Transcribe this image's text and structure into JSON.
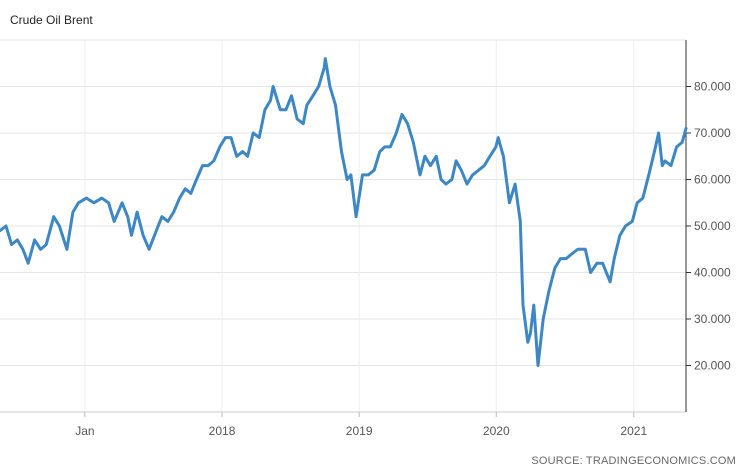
{
  "chart_data": {
    "type": "line",
    "title": "Crude Oil Brent",
    "xlabel": "",
    "ylabel": "",
    "source": "SOURCE: TRADINGECONOMICS.COM",
    "ylim": [
      10,
      90
    ],
    "y_ticks": [
      20,
      30,
      40,
      50,
      60,
      70,
      80
    ],
    "y_tick_labels": [
      "20.000",
      "30.000",
      "40.000",
      "50.000",
      "60.000",
      "70.000",
      "80.000"
    ],
    "y_axis_position": "right",
    "grid": true,
    "x_range": [
      "2016-05-20",
      "2021-05-20"
    ],
    "x_ticks": [
      "2017-01-01",
      "2018-01-01",
      "2019-01-01",
      "2020-01-01",
      "2021-01-01"
    ],
    "x_tick_labels": [
      "Jan",
      "2018",
      "2019",
      "2020",
      "2021"
    ],
    "line_color": "#3d87c4",
    "series": [
      {
        "x": [
          "2016-05-20",
          "2016-06-05",
          "2016-06-20",
          "2016-07-05",
          "2016-07-20",
          "2016-08-03",
          "2016-08-20",
          "2016-09-05",
          "2016-09-20",
          "2016-10-10",
          "2016-10-25",
          "2016-11-14",
          "2016-11-30",
          "2016-12-15",
          "2017-01-05",
          "2017-01-25",
          "2017-02-15",
          "2017-03-05",
          "2017-03-20",
          "2017-04-10",
          "2017-04-25",
          "2017-05-05",
          "2017-05-20",
          "2017-06-05",
          "2017-06-21",
          "2017-07-10",
          "2017-07-25",
          "2017-08-10",
          "2017-08-25",
          "2017-09-10",
          "2017-09-25",
          "2017-10-10",
          "2017-10-25",
          "2017-11-10",
          "2017-11-25",
          "2017-12-10",
          "2017-12-26",
          "2018-01-10",
          "2018-01-25",
          "2018-02-09",
          "2018-02-25",
          "2018-03-10",
          "2018-03-25",
          "2018-04-10",
          "2018-04-25",
          "2018-05-10",
          "2018-05-17",
          "2018-06-05",
          "2018-06-20",
          "2018-07-05",
          "2018-07-20",
          "2018-08-05",
          "2018-08-15",
          "2018-08-31",
          "2018-09-15",
          "2018-09-30",
          "2018-10-03",
          "2018-10-15",
          "2018-10-30",
          "2018-11-15",
          "2018-11-30",
          "2018-12-10",
          "2018-12-24",
          "2019-01-10",
          "2019-01-25",
          "2019-02-10",
          "2019-02-25",
          "2019-03-10",
          "2019-03-25",
          "2019-04-10",
          "2019-04-25",
          "2019-05-10",
          "2019-05-25",
          "2019-06-12",
          "2019-06-25",
          "2019-07-10",
          "2019-07-25",
          "2019-08-07",
          "2019-08-20",
          "2019-09-05",
          "2019-09-16",
          "2019-09-30",
          "2019-10-15",
          "2019-10-30",
          "2019-11-15",
          "2019-11-30",
          "2019-12-15",
          "2019-12-31",
          "2020-01-06",
          "2020-01-20",
          "2020-02-05",
          "2020-02-20",
          "2020-03-05",
          "2020-03-12",
          "2020-03-25",
          "2020-04-01",
          "2020-04-10",
          "2020-04-21",
          "2020-05-05",
          "2020-05-20",
          "2020-06-05",
          "2020-06-20",
          "2020-07-05",
          "2020-07-20",
          "2020-08-05",
          "2020-08-25",
          "2020-09-08",
          "2020-09-25",
          "2020-10-10",
          "2020-10-30",
          "2020-11-10",
          "2020-11-25",
          "2020-12-10",
          "2020-12-28",
          "2021-01-10",
          "2021-01-25",
          "2021-02-10",
          "2021-02-25",
          "2021-03-08",
          "2021-03-18",
          "2021-03-25",
          "2021-04-10",
          "2021-04-25",
          "2021-05-10",
          "2021-05-20"
        ],
        "values": [
          49,
          50,
          46,
          47,
          45,
          42,
          47,
          45,
          46,
          52,
          50,
          45,
          53,
          55,
          56,
          55,
          56,
          55,
          51,
          55,
          52,
          48,
          53,
          48,
          45,
          49,
          52,
          51,
          53,
          56,
          58,
          57,
          60,
          63,
          63,
          64,
          67,
          69,
          69,
          65,
          66,
          65,
          70,
          69,
          75,
          77,
          80,
          75,
          75,
          78,
          73,
          72,
          76,
          78,
          80,
          84,
          86,
          80,
          76,
          66,
          60,
          61,
          52,
          61,
          61,
          62,
          66,
          67,
          67,
          70,
          74,
          72,
          68,
          61,
          65,
          63,
          65,
          60,
          59,
          60,
          64,
          62,
          59,
          61,
          62,
          63,
          65,
          67,
          69,
          65,
          55,
          59,
          51,
          33,
          25,
          27,
          33,
          20,
          30,
          36,
          41,
          43,
          43,
          44,
          45,
          45,
          40,
          42,
          42,
          38,
          43,
          48,
          50,
          51,
          55,
          56,
          61,
          66,
          70,
          63,
          64,
          63,
          67,
          68,
          71
        ]
      }
    ]
  }
}
